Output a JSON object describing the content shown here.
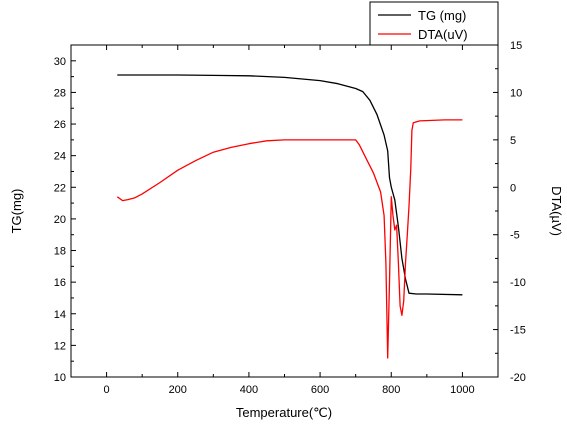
{
  "chart_data": {
    "type": "line",
    "title": "",
    "xlabel": "Temperature(℃)",
    "ylabel_left": "TG(mg)",
    "ylabel_right": "DTA(µV)",
    "xlim": [
      -100,
      1100
    ],
    "ylim_left": [
      10,
      31
    ],
    "ylim_right": [
      -20,
      15
    ],
    "x_ticks": [
      "0",
      "200",
      "400",
      "600",
      "800",
      "1000"
    ],
    "y_left_ticks": [
      "10",
      "12",
      "14",
      "16",
      "18",
      "20",
      "22",
      "24",
      "26",
      "28",
      "30"
    ],
    "y_right_ticks": [
      "-20",
      "-15",
      "-10",
      "-5",
      "0",
      "5",
      "10",
      "15"
    ],
    "legend_position": "top-right",
    "series": [
      {
        "name": "TG (mg)",
        "axis": "left",
        "color": "#000000",
        "points": [
          [
            30,
            29.1
          ],
          [
            60,
            29.1
          ],
          [
            100,
            29.1
          ],
          [
            200,
            29.1
          ],
          [
            300,
            29.08
          ],
          [
            400,
            29.05
          ],
          [
            500,
            28.95
          ],
          [
            600,
            28.75
          ],
          [
            650,
            28.55
          ],
          [
            700,
            28.25
          ],
          [
            720,
            28.05
          ],
          [
            740,
            27.5
          ],
          [
            760,
            26.6
          ],
          [
            780,
            25.3
          ],
          [
            790,
            24.3
          ],
          [
            795,
            22.6
          ],
          [
            800,
            22.0
          ],
          [
            810,
            21.2
          ],
          [
            820,
            19.5
          ],
          [
            830,
            17.5
          ],
          [
            840,
            16.2
          ],
          [
            850,
            15.3
          ],
          [
            870,
            15.25
          ],
          [
            900,
            15.25
          ],
          [
            1000,
            15.2
          ]
        ]
      },
      {
        "name": "DTA(uV)",
        "axis": "right",
        "color": "#ff0000",
        "points": [
          [
            30,
            -1.0
          ],
          [
            45,
            -1.4
          ],
          [
            60,
            -1.3
          ],
          [
            80,
            -1.1
          ],
          [
            90,
            -0.9
          ],
          [
            100,
            -0.7
          ],
          [
            150,
            0.5
          ],
          [
            200,
            1.8
          ],
          [
            250,
            2.8
          ],
          [
            300,
            3.7
          ],
          [
            350,
            4.2
          ],
          [
            400,
            4.6
          ],
          [
            450,
            4.9
          ],
          [
            500,
            5.0
          ],
          [
            600,
            5.0
          ],
          [
            650,
            5.0
          ],
          [
            700,
            5.0
          ],
          [
            710,
            4.5
          ],
          [
            730,
            3.0
          ],
          [
            750,
            1.5
          ],
          [
            770,
            -0.5
          ],
          [
            780,
            -3.0
          ],
          [
            785,
            -8.0
          ],
          [
            790,
            -18.0
          ],
          [
            795,
            -10.0
          ],
          [
            800,
            -1.0
          ],
          [
            805,
            -3.0
          ],
          [
            810,
            -4.5
          ],
          [
            815,
            -4.0
          ],
          [
            820,
            -8.0
          ],
          [
            825,
            -12.5
          ],
          [
            830,
            -13.5
          ],
          [
            835,
            -12.0
          ],
          [
            840,
            -8.0
          ],
          [
            845,
            -5.0
          ],
          [
            850,
            -2.0
          ],
          [
            855,
            2.0
          ],
          [
            858,
            6.0
          ],
          [
            862,
            6.8
          ],
          [
            880,
            7.0
          ],
          [
            950,
            7.1
          ],
          [
            1000,
            7.1
          ]
        ]
      }
    ]
  }
}
